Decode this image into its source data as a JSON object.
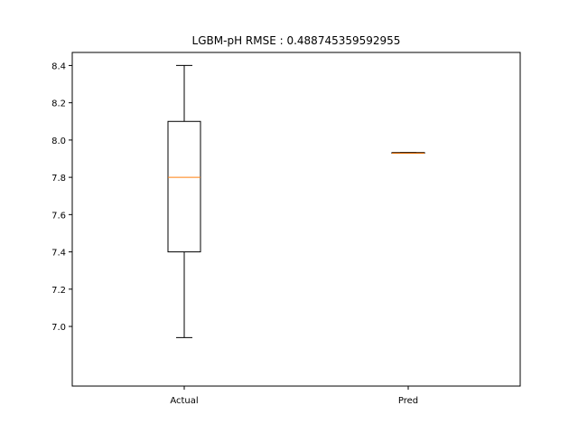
{
  "chart_data": {
    "type": "box",
    "title": "LGBM-pH RMSE : 0.488745359592955",
    "xlabel": "",
    "ylabel": "",
    "ylim": [
      6.68,
      8.47
    ],
    "yticks": [
      "7.0",
      "7.2",
      "7.4",
      "7.6",
      "7.8",
      "8.0",
      "8.2",
      "8.4"
    ],
    "grid": false,
    "legend": "none",
    "categories": [
      "Actual",
      "Pred"
    ],
    "boxes": [
      {
        "name": "Actual",
        "whisker_low": 6.94,
        "q1": 7.4,
        "median": 7.8,
        "q3": 8.1,
        "whisker_high": 8.4
      },
      {
        "name": "Pred",
        "whisker_low": 7.929,
        "q1": 7.929,
        "median": 7.93,
        "q3": 7.933,
        "whisker_high": 7.933
      }
    ],
    "colors": {
      "box": "#000000",
      "median": "#ff7f0e",
      "axes": "#000000"
    }
  }
}
